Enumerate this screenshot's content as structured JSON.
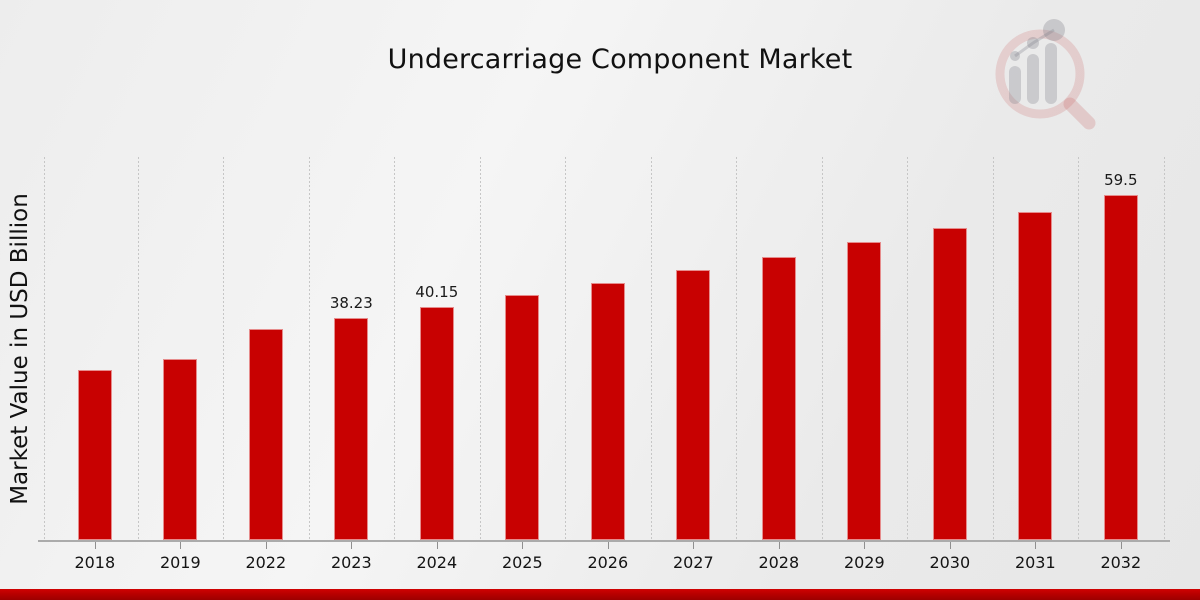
{
  "header": {
    "title": "Undercarriage Component Market"
  },
  "chart_data": {
    "type": "bar",
    "title": "Undercarriage Component Market",
    "xlabel": "",
    "ylabel": "Market Value in USD Billion",
    "categories": [
      "2018",
      "2019",
      "2022",
      "2023",
      "2024",
      "2025",
      "2026",
      "2027",
      "2028",
      "2029",
      "2030",
      "2031",
      "2032"
    ],
    "values": [
      29.3,
      31.2,
      36.3,
      38.23,
      40.15,
      42.2,
      44.3,
      46.5,
      48.8,
      51.3,
      53.8,
      56.5,
      59.5
    ],
    "value_labels": {
      "2023": "38.23",
      "2024": "40.15",
      "2032": "59.5"
    },
    "ylim": [
      0,
      66
    ],
    "grid": "vertical-dotted",
    "legend_position": "none",
    "bar_color": "#c80101",
    "gridline_color": "#c6c6c6",
    "axis_line_color": "#ababab"
  },
  "branding": {
    "logo_icon": "magnifier-barchart-icon",
    "footer_ribbon_color": "#b30000"
  }
}
